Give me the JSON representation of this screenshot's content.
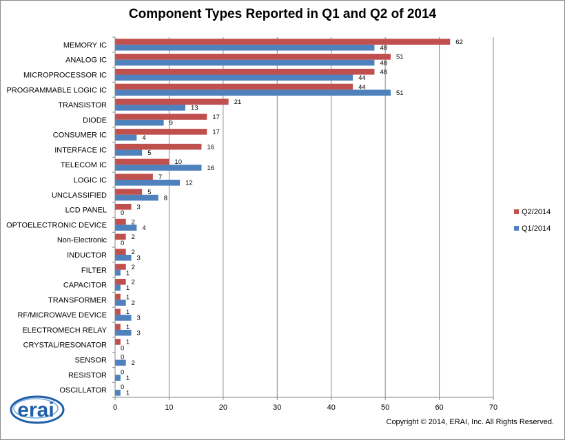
{
  "chart_data": {
    "type": "bar",
    "orientation": "horizontal",
    "title": "Component Types Reported in Q1 and Q2 of 2014",
    "xlabel": "",
    "ylabel": "",
    "xlim": [
      0,
      70
    ],
    "x_ticks": [
      0,
      10,
      20,
      30,
      40,
      50,
      60,
      70
    ],
    "grid": "vertical",
    "legend_position": "right",
    "categories": [
      "MEMORY IC",
      "ANALOG IC",
      "MICROPROCESSOR IC",
      "PROGRAMMABLE LOGIC IC",
      "TRANSISTOR",
      "DIODE",
      "CONSUMER IC",
      "INTERFACE IC",
      "TELECOM IC",
      "LOGIC IC",
      "UNCLASSIFIED",
      "LCD PANEL",
      "OPTOELECTRONIC DEVICE",
      "Non-Electronic",
      "INDUCTOR",
      "FILTER",
      "CAPACITOR",
      "TRANSFORMER",
      "RF/MICROWAVE DEVICE",
      "ELECTROMECH RELAY",
      "CRYSTAL/RESONATOR",
      "SENSOR",
      "RESISTOR",
      "OSCILLATOR"
    ],
    "series": [
      {
        "name": "Q2/2014",
        "color": "#c0504d",
        "values": [
          62,
          51,
          48,
          44,
          21,
          17,
          17,
          16,
          10,
          7,
          5,
          3,
          2,
          2,
          2,
          2,
          2,
          1,
          1,
          1,
          1,
          0,
          0,
          0
        ]
      },
      {
        "name": "Q1/2014",
        "color": "#4f81bd",
        "values": [
          48,
          48,
          44,
          51,
          13,
          9,
          4,
          5,
          16,
          12,
          8,
          0,
          4,
          0,
          3,
          1,
          1,
          2,
          3,
          3,
          0,
          2,
          1,
          1
        ]
      }
    ]
  },
  "footer": {
    "copyright": "Copyright © 2014, ERAI, Inc.  All Rights Reserved."
  },
  "logo": {
    "text": "erai",
    "color": "#1f5fa8"
  }
}
